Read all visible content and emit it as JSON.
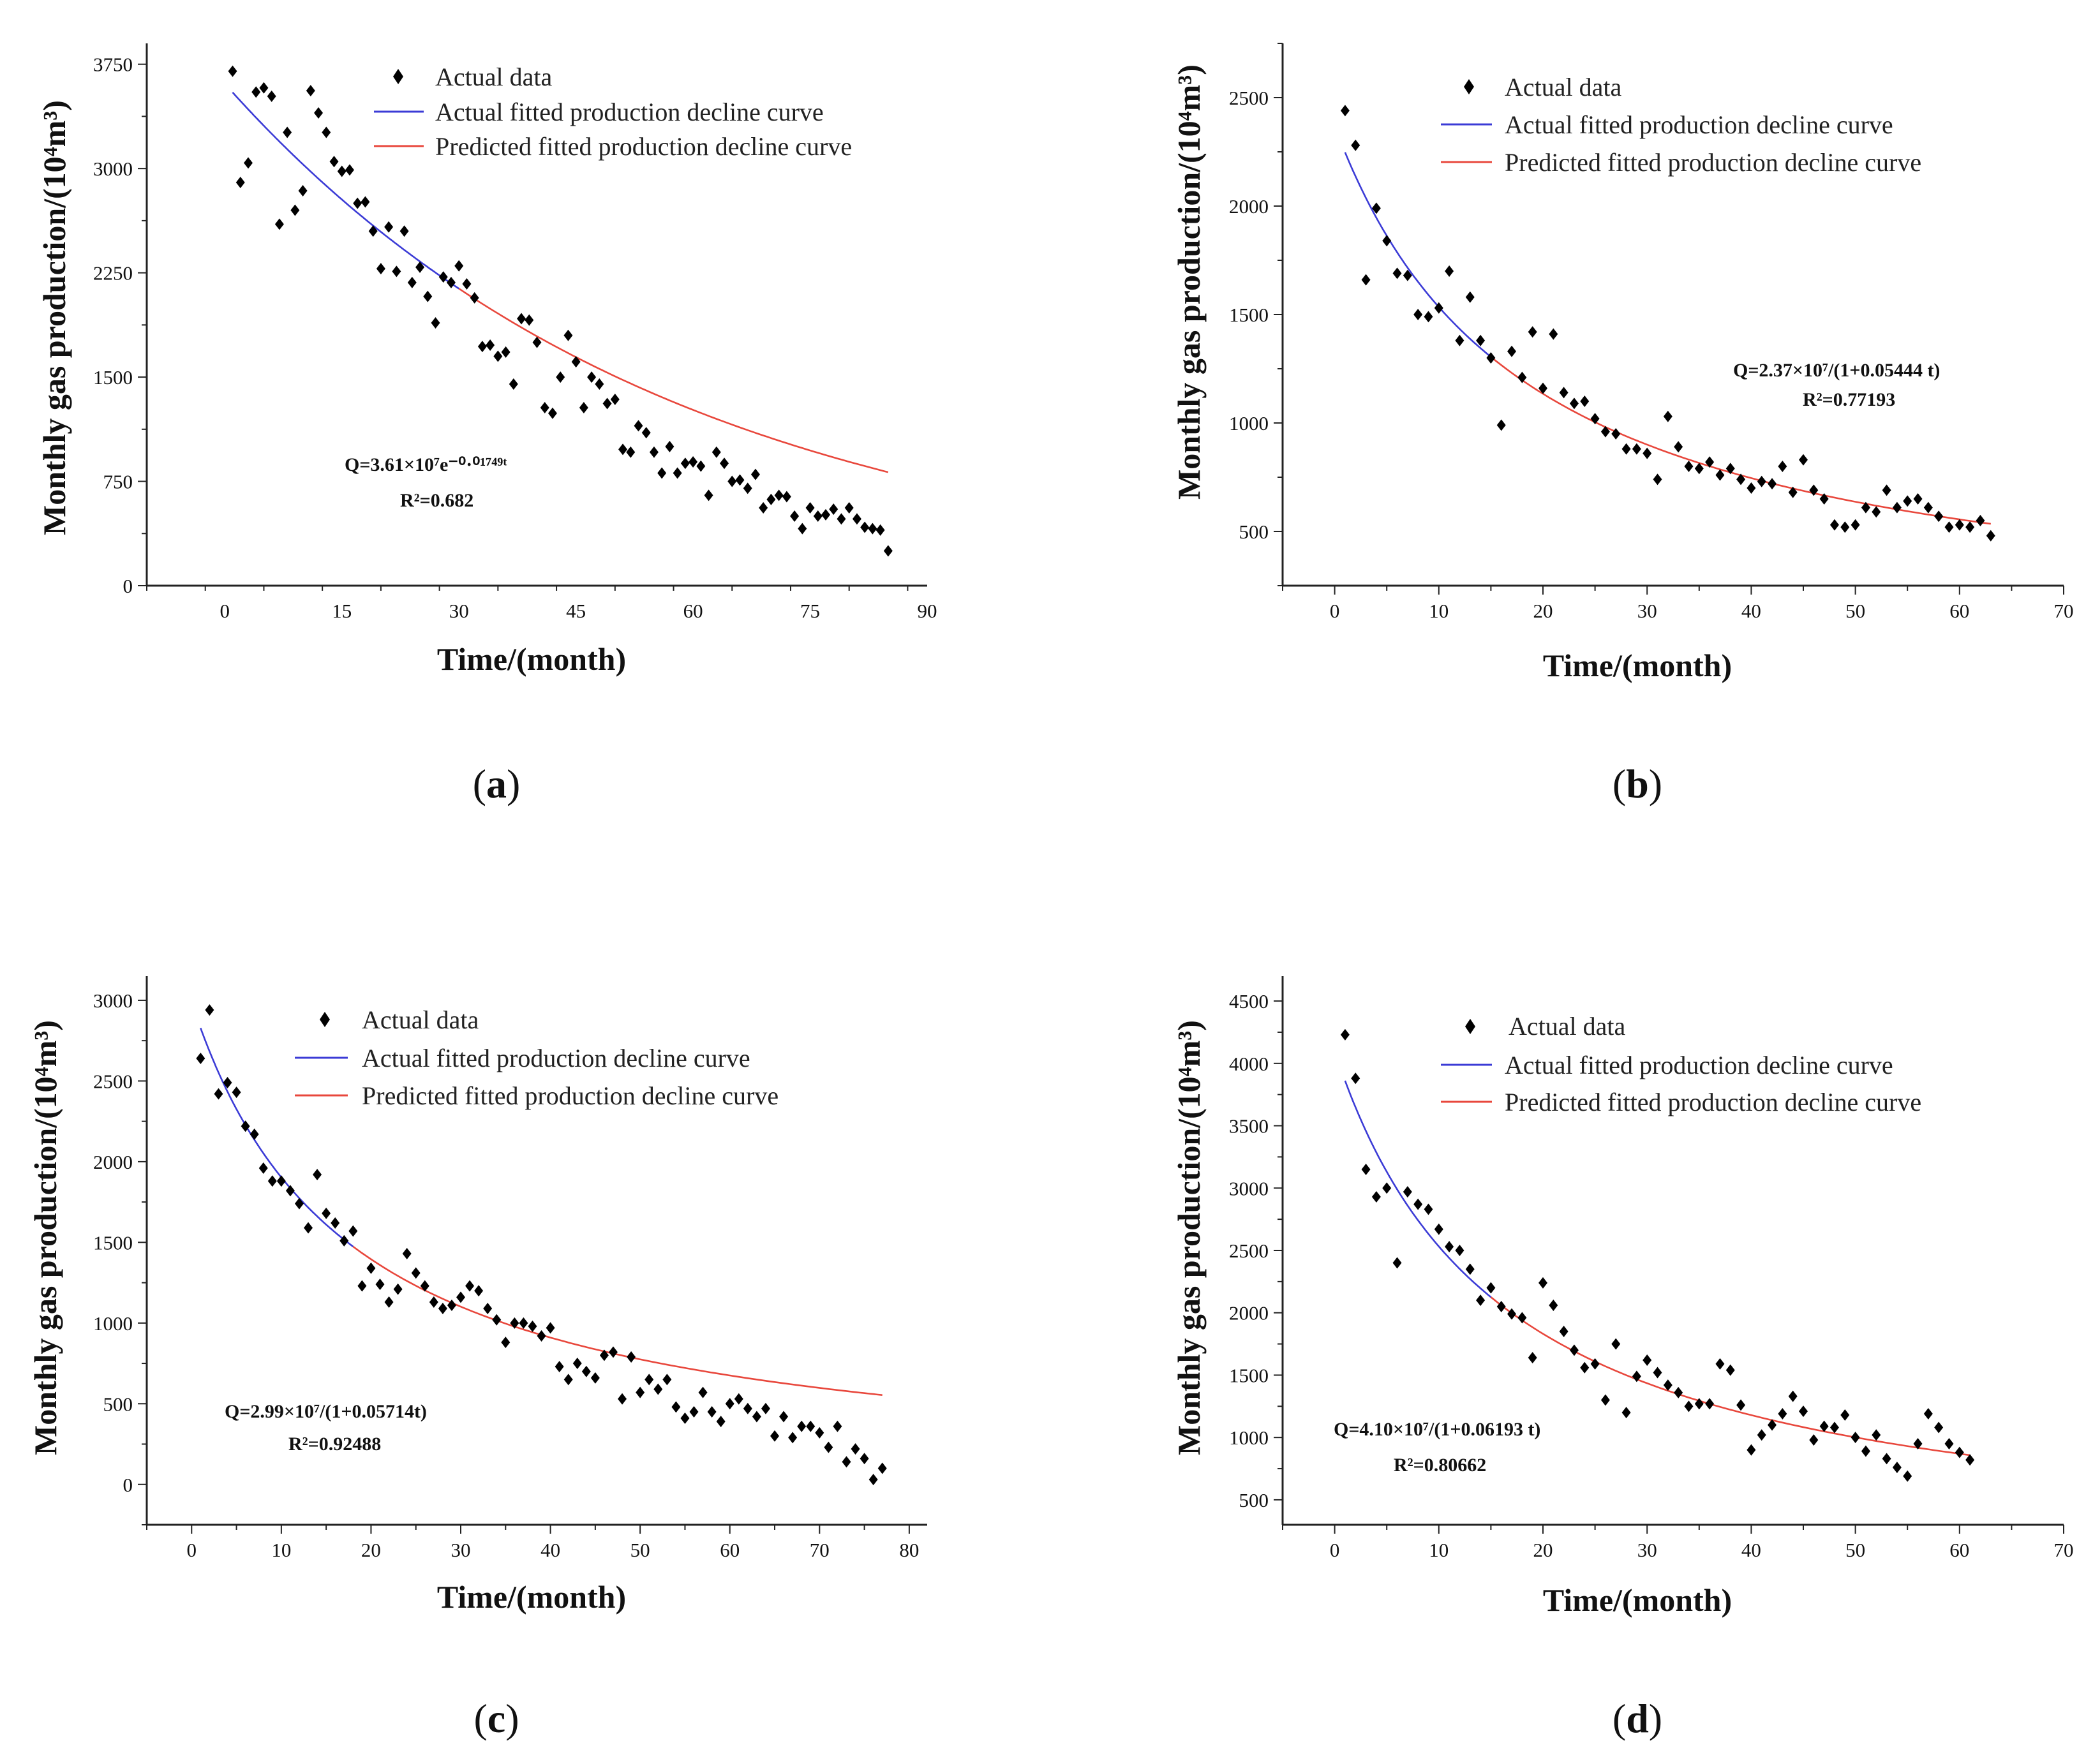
{
  "chart_data": [
    {
      "type": "scatter",
      "panel_label": "a",
      "xlabel": "Time/(month)",
      "ylabel": "Monthly gas production/(10⁴m³)",
      "xlim": [
        -10,
        90
      ],
      "ylim": [
        0,
        3900
      ],
      "xticks": [
        0,
        15,
        30,
        45,
        60,
        75,
        90
      ],
      "yticks": [
        0,
        750,
        1500,
        2250,
        3000,
        3750
      ],
      "legend": {
        "scatter": "Actual data",
        "actual_fit": "Actual fitted production decline curve",
        "predicted_fit": "Predicted fitted production decline curve"
      },
      "equation": "Q=3.61×10⁷e⁻⁰·⁰¹⁷⁴⁹ᵗ",
      "r2": "R²=0.682",
      "colors": {
        "points": "#000000",
        "actual_fit": "#3b3bd6",
        "predicted_fit": "#e8473c"
      },
      "model": {
        "kind": "exponential",
        "q0": 3610,
        "d": 0.01749,
        "actual_range": [
          1,
          30
        ],
        "predicted_range": [
          30,
          85
        ]
      },
      "points": [
        [
          1,
          3700
        ],
        [
          2,
          2900
        ],
        [
          3,
          3040
        ],
        [
          4,
          3550
        ],
        [
          5,
          3580
        ],
        [
          6,
          3520
        ],
        [
          7,
          2600
        ],
        [
          8,
          3260
        ],
        [
          9,
          2700
        ],
        [
          10,
          2840
        ],
        [
          11,
          3560
        ],
        [
          12,
          3400
        ],
        [
          13,
          3260
        ],
        [
          14,
          3050
        ],
        [
          15,
          2980
        ],
        [
          16,
          2990
        ],
        [
          17,
          2750
        ],
        [
          18,
          2760
        ],
        [
          19,
          2550
        ],
        [
          20,
          2280
        ],
        [
          21,
          2580
        ],
        [
          22,
          2260
        ],
        [
          23,
          2550
        ],
        [
          24,
          2180
        ],
        [
          25,
          2290
        ],
        [
          26,
          2080
        ],
        [
          27,
          1890
        ],
        [
          28,
          2220
        ],
        [
          29,
          2180
        ],
        [
          30,
          2300
        ],
        [
          31,
          2170
        ],
        [
          32,
          2070
        ],
        [
          33,
          1720
        ],
        [
          34,
          1730
        ],
        [
          35,
          1650
        ],
        [
          36,
          1680
        ],
        [
          37,
          1450
        ],
        [
          38,
          1920
        ],
        [
          39,
          1910
        ],
        [
          40,
          1750
        ],
        [
          41,
          1280
        ],
        [
          42,
          1240
        ],
        [
          43,
          1500
        ],
        [
          44,
          1800
        ],
        [
          45,
          1610
        ],
        [
          46,
          1280
        ],
        [
          47,
          1500
        ],
        [
          48,
          1450
        ],
        [
          49,
          1310
        ],
        [
          50,
          1340
        ],
        [
          51,
          980
        ],
        [
          52,
          960
        ],
        [
          53,
          1150
        ],
        [
          54,
          1100
        ],
        [
          55,
          960
        ],
        [
          56,
          810
        ],
        [
          57,
          1000
        ],
        [
          58,
          810
        ],
        [
          59,
          880
        ],
        [
          60,
          890
        ],
        [
          61,
          860
        ],
        [
          62,
          650
        ],
        [
          63,
          960
        ],
        [
          64,
          880
        ],
        [
          65,
          750
        ],
        [
          66,
          760
        ],
        [
          67,
          700
        ],
        [
          68,
          800
        ],
        [
          69,
          560
        ],
        [
          70,
          620
        ],
        [
          71,
          650
        ],
        [
          72,
          640
        ],
        [
          73,
          500
        ],
        [
          74,
          410
        ],
        [
          75,
          560
        ],
        [
          76,
          500
        ],
        [
          77,
          510
        ],
        [
          78,
          550
        ],
        [
          79,
          480
        ],
        [
          80,
          560
        ],
        [
          81,
          480
        ],
        [
          82,
          420
        ],
        [
          83,
          410
        ],
        [
          84,
          400
        ],
        [
          85,
          250
        ]
      ]
    },
    {
      "type": "scatter",
      "panel_label": "b",
      "xlabel": "Time/(month)",
      "ylabel": "Monthly gas production/(10⁴m³)",
      "xlim": [
        -5,
        70
      ],
      "ylim": [
        250,
        2750
      ],
      "xticks": [
        0,
        10,
        20,
        30,
        40,
        50,
        60,
        70
      ],
      "yticks": [
        500,
        1000,
        1500,
        2000,
        2500
      ],
      "legend": {
        "scatter": "Actual data",
        "actual_fit": "Actual fitted production decline curve",
        "predicted_fit": "Predicted fitted production decline curve"
      },
      "equation": "Q=2.37×10⁷/(1+0.05444 t)",
      "r2": "R²=0.77193",
      "colors": {
        "points": "#000000",
        "actual_fit": "#3b3bd6",
        "predicted_fit": "#e8473c"
      },
      "model": {
        "kind": "harmonic",
        "q0": 2370,
        "d": 0.05444,
        "actual_range": [
          1,
          15
        ],
        "predicted_range": [
          15,
          63
        ]
      },
      "points": [
        [
          1,
          2440
        ],
        [
          2,
          2280
        ],
        [
          3,
          1660
        ],
        [
          4,
          1990
        ],
        [
          5,
          1840
        ],
        [
          6,
          1690
        ],
        [
          7,
          1680
        ],
        [
          8,
          1500
        ],
        [
          9,
          1490
        ],
        [
          10,
          1530
        ],
        [
          11,
          1700
        ],
        [
          12,
          1380
        ],
        [
          13,
          1580
        ],
        [
          14,
          1380
        ],
        [
          15,
          1300
        ],
        [
          16,
          990
        ],
        [
          17,
          1330
        ],
        [
          18,
          1210
        ],
        [
          19,
          1420
        ],
        [
          20,
          1160
        ],
        [
          21,
          1410
        ],
        [
          22,
          1140
        ],
        [
          23,
          1090
        ],
        [
          24,
          1100
        ],
        [
          25,
          1020
        ],
        [
          26,
          960
        ],
        [
          27,
          950
        ],
        [
          28,
          880
        ],
        [
          29,
          880
        ],
        [
          30,
          860
        ],
        [
          31,
          740
        ],
        [
          32,
          1030
        ],
        [
          33,
          890
        ],
        [
          34,
          800
        ],
        [
          35,
          790
        ],
        [
          36,
          820
        ],
        [
          37,
          760
        ],
        [
          38,
          790
        ],
        [
          39,
          740
        ],
        [
          40,
          700
        ],
        [
          41,
          730
        ],
        [
          42,
          720
        ],
        [
          43,
          800
        ],
        [
          44,
          680
        ],
        [
          45,
          830
        ],
        [
          46,
          690
        ],
        [
          47,
          650
        ],
        [
          48,
          530
        ],
        [
          49,
          520
        ],
        [
          50,
          530
        ],
        [
          51,
          610
        ],
        [
          52,
          590
        ],
        [
          53,
          690
        ],
        [
          54,
          610
        ],
        [
          55,
          640
        ],
        [
          56,
          650
        ],
        [
          57,
          610
        ],
        [
          58,
          570
        ],
        [
          59,
          520
        ],
        [
          60,
          530
        ],
        [
          61,
          520
        ],
        [
          62,
          550
        ],
        [
          63,
          480
        ]
      ]
    },
    {
      "type": "scatter",
      "panel_label": "c",
      "xlabel": "Time/(month)",
      "ylabel": "Monthly gas production/(10⁴m³)",
      "xlim": [
        -5,
        82
      ],
      "ylim": [
        -250,
        3150
      ],
      "xticks": [
        0,
        10,
        20,
        30,
        40,
        50,
        60,
        70,
        80
      ],
      "yticks": [
        0,
        500,
        1000,
        1500,
        2000,
        2500,
        3000
      ],
      "legend": {
        "scatter": "Actual data",
        "actual_fit": "Actual fitted production decline curve",
        "predicted_fit": "Predicted fitted production decline curve"
      },
      "equation": "Q=2.99×10⁷/(1+0.05714t)",
      "r2": "R²=0.92488",
      "colors": {
        "points": "#000000",
        "actual_fit": "#3b3bd6",
        "predicted_fit": "#e8473c"
      },
      "model": {
        "kind": "harmonic",
        "q0": 2990,
        "d": 0.05714,
        "actual_range": [
          1,
          18
        ],
        "predicted_range": [
          18,
          77
        ]
      },
      "points": [
        [
          1,
          2640
        ],
        [
          2,
          2940
        ],
        [
          3,
          2420
        ],
        [
          4,
          2490
        ],
        [
          5,
          2430
        ],
        [
          6,
          2220
        ],
        [
          7,
          2170
        ],
        [
          8,
          1960
        ],
        [
          9,
          1880
        ],
        [
          10,
          1880
        ],
        [
          11,
          1820
        ],
        [
          12,
          1740
        ],
        [
          13,
          1590
        ],
        [
          14,
          1920
        ],
        [
          15,
          1680
        ],
        [
          16,
          1620
        ],
        [
          17,
          1510
        ],
        [
          18,
          1570
        ],
        [
          19,
          1230
        ],
        [
          20,
          1340
        ],
        [
          21,
          1240
        ],
        [
          22,
          1130
        ],
        [
          23,
          1210
        ],
        [
          24,
          1430
        ],
        [
          25,
          1310
        ],
        [
          26,
          1230
        ],
        [
          27,
          1130
        ],
        [
          28,
          1090
        ],
        [
          29,
          1110
        ],
        [
          30,
          1160
        ],
        [
          31,
          1230
        ],
        [
          32,
          1200
        ],
        [
          33,
          1090
        ],
        [
          34,
          1020
        ],
        [
          35,
          880
        ],
        [
          36,
          1000
        ],
        [
          37,
          1000
        ],
        [
          38,
          980
        ],
        [
          39,
          920
        ],
        [
          40,
          970
        ],
        [
          41,
          730
        ],
        [
          42,
          650
        ],
        [
          43,
          750
        ],
        [
          44,
          700
        ],
        [
          45,
          660
        ],
        [
          46,
          800
        ],
        [
          47,
          820
        ],
        [
          48,
          530
        ],
        [
          49,
          790
        ],
        [
          50,
          570
        ],
        [
          51,
          650
        ],
        [
          52,
          590
        ],
        [
          53,
          650
        ],
        [
          54,
          480
        ],
        [
          55,
          410
        ],
        [
          56,
          450
        ],
        [
          57,
          570
        ],
        [
          58,
          450
        ],
        [
          59,
          390
        ],
        [
          60,
          500
        ],
        [
          61,
          530
        ],
        [
          62,
          470
        ],
        [
          63,
          420
        ],
        [
          64,
          470
        ],
        [
          65,
          300
        ],
        [
          66,
          420
        ],
        [
          67,
          290
        ],
        [
          68,
          360
        ],
        [
          69,
          360
        ],
        [
          70,
          320
        ],
        [
          71,
          230
        ],
        [
          72,
          360
        ],
        [
          73,
          140
        ],
        [
          74,
          220
        ],
        [
          75,
          160
        ],
        [
          76,
          30
        ],
        [
          77,
          100
        ]
      ]
    },
    {
      "type": "scatter",
      "panel_label": "d",
      "xlabel": "Time/(month)",
      "ylabel": "Monthly gas production/(10⁴m³)",
      "xlim": [
        -5,
        70
      ],
      "ylim": [
        300,
        4700
      ],
      "xticks": [
        0,
        10,
        20,
        30,
        40,
        50,
        60,
        70
      ],
      "yticks": [
        500,
        1000,
        1500,
        2000,
        2500,
        3000,
        3500,
        4000,
        4500
      ],
      "legend": {
        "scatter": "Actual data",
        "actual_fit": "Actual fitted production decline curve",
        "predicted_fit": "Predicted fitted production decline curve"
      },
      "equation": "Q=4.10×10⁷/(1+0.06193 t)",
      "r2": "R²=0.80662",
      "colors": {
        "points": "#000000",
        "actual_fit": "#3b3bd6",
        "predicted_fit": "#e8473c"
      },
      "model": {
        "kind": "harmonic",
        "q0": 4100,
        "d": 0.06193,
        "actual_range": [
          1,
          15
        ],
        "predicted_range": [
          15,
          61
        ]
      },
      "points": [
        [
          1,
          4230
        ],
        [
          2,
          3880
        ],
        [
          3,
          3150
        ],
        [
          4,
          2930
        ],
        [
          5,
          3000
        ],
        [
          6,
          2400
        ],
        [
          7,
          2970
        ],
        [
          8,
          2870
        ],
        [
          9,
          2830
        ],
        [
          10,
          2670
        ],
        [
          11,
          2530
        ],
        [
          12,
          2500
        ],
        [
          13,
          2350
        ],
        [
          14,
          2100
        ],
        [
          15,
          2200
        ],
        [
          16,
          2050
        ],
        [
          17,
          1990
        ],
        [
          18,
          1960
        ],
        [
          19,
          1640
        ],
        [
          20,
          2240
        ],
        [
          21,
          2060
        ],
        [
          22,
          1850
        ],
        [
          23,
          1700
        ],
        [
          24,
          1560
        ],
        [
          25,
          1590
        ],
        [
          26,
          1300
        ],
        [
          27,
          1750
        ],
        [
          28,
          1200
        ],
        [
          29,
          1490
        ],
        [
          30,
          1620
        ],
        [
          31,
          1520
        ],
        [
          32,
          1420
        ],
        [
          33,
          1360
        ],
        [
          34,
          1250
        ],
        [
          35,
          1270
        ],
        [
          36,
          1270
        ],
        [
          37,
          1590
        ],
        [
          38,
          1540
        ],
        [
          39,
          1260
        ],
        [
          40,
          900
        ],
        [
          41,
          1020
        ],
        [
          42,
          1100
        ],
        [
          43,
          1190
        ],
        [
          44,
          1330
        ],
        [
          45,
          1210
        ],
        [
          46,
          980
        ],
        [
          47,
          1090
        ],
        [
          48,
          1080
        ],
        [
          49,
          1180
        ],
        [
          50,
          1000
        ],
        [
          51,
          890
        ],
        [
          52,
          1020
        ],
        [
          53,
          830
        ],
        [
          54,
          760
        ],
        [
          55,
          690
        ],
        [
          56,
          950
        ],
        [
          57,
          1190
        ],
        [
          58,
          1080
        ],
        [
          59,
          950
        ],
        [
          60,
          880
        ],
        [
          61,
          820
        ]
      ]
    }
  ]
}
